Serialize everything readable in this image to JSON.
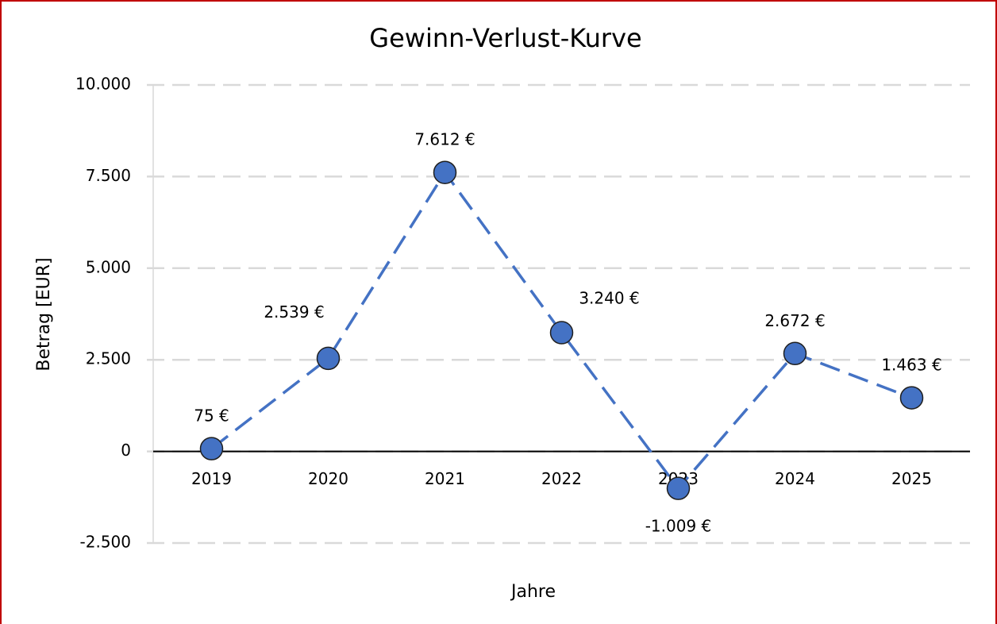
{
  "chart_data": {
    "type": "line",
    "title": "Gewinn-Verlust-Kurve",
    "x_label": "Jahre",
    "y_label": "Betrag [EUR]",
    "categories": [
      "2019",
      "2020",
      "2021",
      "2022",
      "2023",
      "2024",
      "2025"
    ],
    "values": [
      75,
      2539,
      7612,
      3240,
      -1009,
      2672,
      1463
    ],
    "value_labels": [
      "75 €",
      "2.539 €",
      "7.612 €",
      "3.240 €",
      "-1.009 €",
      "2.672 €",
      "1.463 €"
    ],
    "color": "#4472c4",
    "ylim": [
      -2500,
      10000
    ],
    "yticks": [
      {
        "value": -2500,
        "label": "-2.500"
      },
      0,
      {
        "value": 2500,
        "label": "2.500"
      },
      {
        "value": 5000,
        "label": "5.000"
      },
      {
        "value": 7500,
        "label": "7.500"
      },
      {
        "value": 10000,
        "label": "10.000"
      }
    ],
    "grid": true,
    "line_style": "dashed"
  }
}
